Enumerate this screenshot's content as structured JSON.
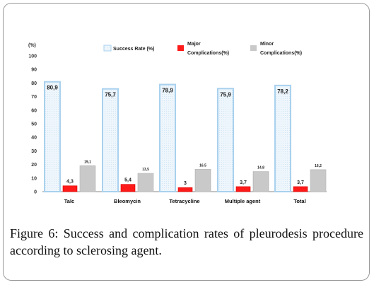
{
  "chart_data": {
    "type": "bar",
    "ylabel": "(%)",
    "ylim": [
      0,
      100
    ],
    "yticks": [
      0,
      10,
      20,
      30,
      40,
      50,
      60,
      70,
      80,
      90,
      100
    ],
    "categories": [
      "Talc",
      "Bleomycin",
      "Tetracycline",
      "Multiple agent",
      "Total"
    ],
    "series": [
      {
        "name": "Success Rate (%)",
        "values": [
          80.9,
          75.7,
          78.9,
          75.9,
          78.2
        ],
        "labels": [
          "80,9",
          "75,7",
          "78,9",
          "75,9",
          "78,2"
        ],
        "color": "#e8f3fb",
        "stroke": "#a9d1ee"
      },
      {
        "name": "Major Complications(%)",
        "values": [
          4.3,
          5.4,
          3,
          3.7,
          3.7
        ],
        "labels": [
          "4,3",
          "5,4",
          "3",
          "3,7",
          "3,7"
        ],
        "color": "#ff1a1a",
        "stroke": "#dd0000"
      },
      {
        "name": "Minor Complications(%)",
        "values": [
          19.1,
          13.5,
          16.5,
          14.8,
          16.2
        ],
        "labels": [
          "19,1",
          "13,5",
          "16,5",
          "14,8",
          "16,2"
        ],
        "color": "#c4c4c4",
        "stroke": "#b0b0b0"
      }
    ],
    "legend_position": "top"
  },
  "caption": {
    "label": "Figure 6:",
    "text": " Success and complication rates of pleurodesis procedure according to sclerosing agent."
  }
}
